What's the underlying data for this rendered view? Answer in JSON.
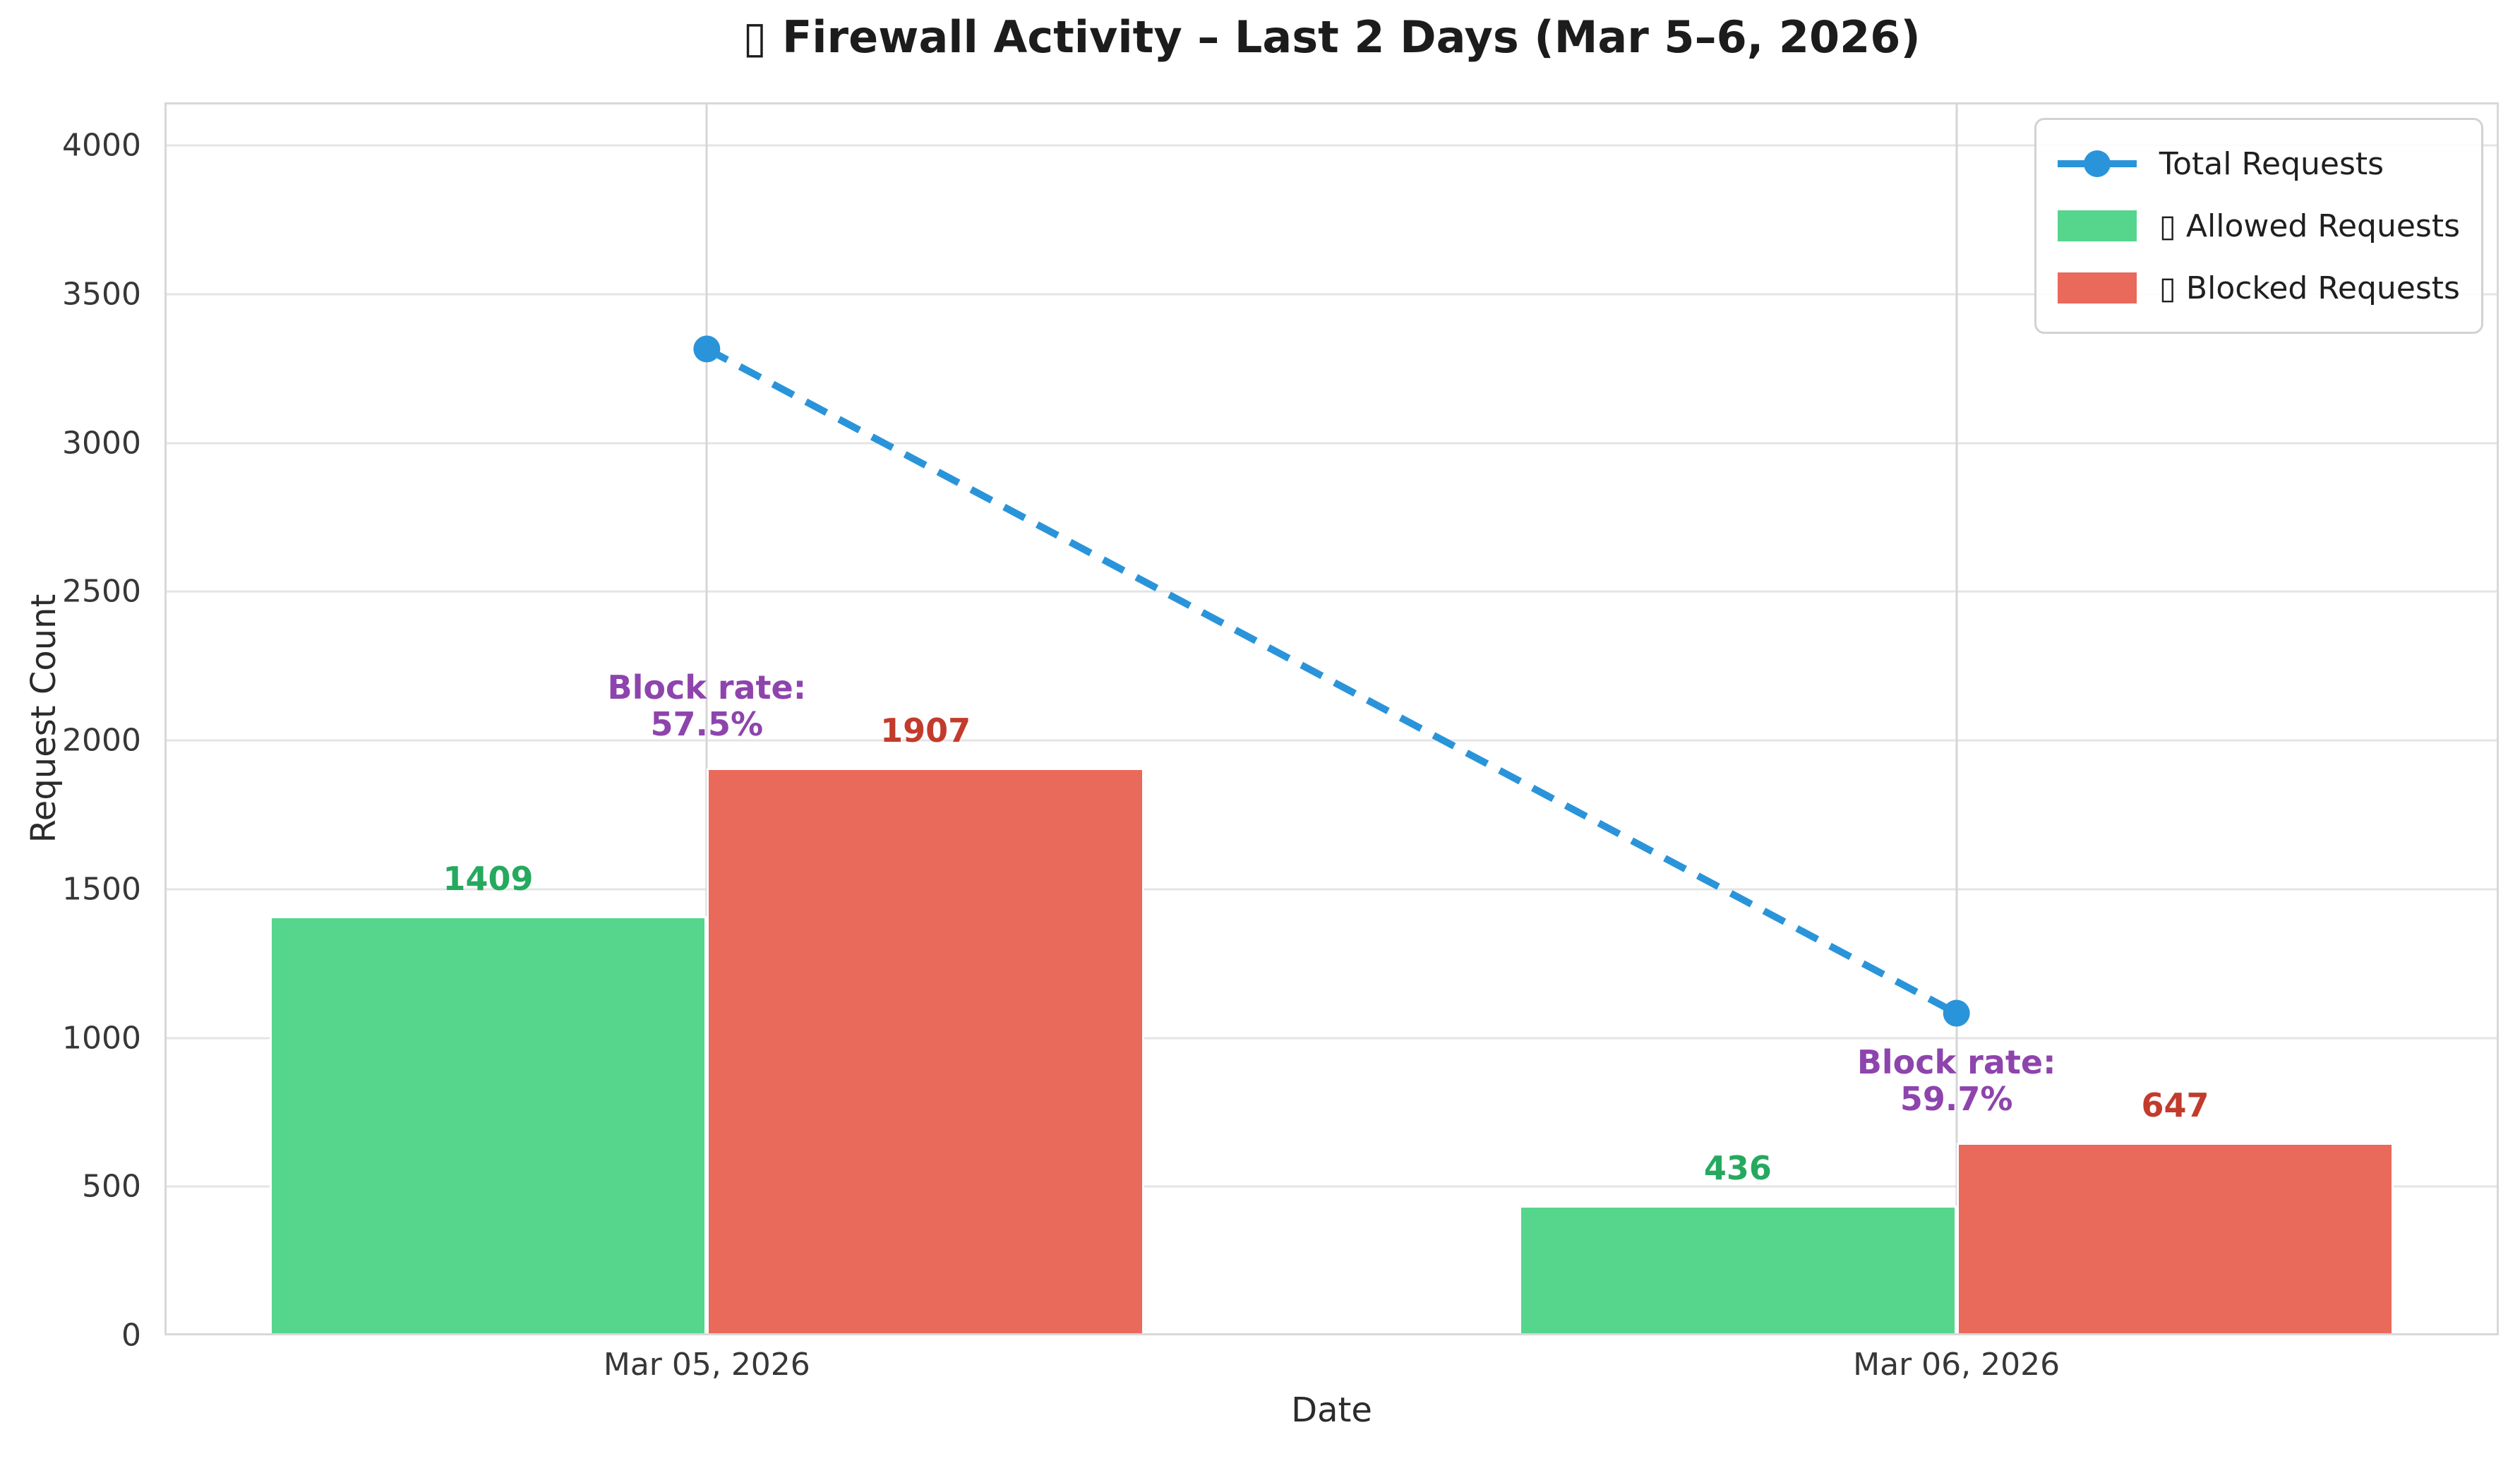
{
  "chart_data": {
    "type": "bar",
    "title": "▯ Firewall Activity – Last 2 Days (Mar 5–6, 2026)",
    "xlabel": "Date",
    "ylabel": "Request Count",
    "categories": [
      "Mar 05, 2026",
      "Mar 06, 2026"
    ],
    "series": [
      {
        "name": "▯ Allowed Requests",
        "kind": "bar",
        "color": "#55d68c",
        "label_color": "#25a95f",
        "values": [
          1409,
          436
        ]
      },
      {
        "name": "▯ Blocked Requests",
        "kind": "bar",
        "color": "#e9695b",
        "label_color": "#c23b2c",
        "values": [
          1907,
          647
        ]
      },
      {
        "name": "Total Requests",
        "kind": "line",
        "line_style": "dashed",
        "marker": "circle",
        "color": "#2a94da",
        "values": [
          3316,
          1083
        ]
      }
    ],
    "annotations": [
      {
        "category_index": 0,
        "lines": [
          "Block rate:",
          "57.5%"
        ],
        "color": "#8e44ad"
      },
      {
        "category_index": 1,
        "lines": [
          "Block rate:",
          "59.7%"
        ],
        "color": "#8e44ad"
      }
    ],
    "y_ticks": [
      0,
      500,
      1000,
      1500,
      2000,
      2500,
      3000,
      3500,
      4000
    ],
    "ylim": [
      0,
      4145
    ],
    "xlim": [
      -0.434,
      1.434
    ],
    "bar_width": 0.35,
    "bar_offset": 0.175,
    "grid": true,
    "legend": {
      "position": "upper right",
      "order": [
        2,
        0,
        1
      ]
    }
  },
  "style": {
    "background": "#ffffff",
    "grid_color": "#e4e4e4",
    "vgrid_color": "#d6d6d6",
    "plot_border": "#d8d8d8",
    "text_color": "#373737",
    "title_color": "#1c1c1c",
    "legend_border": "#d2d2d2"
  }
}
